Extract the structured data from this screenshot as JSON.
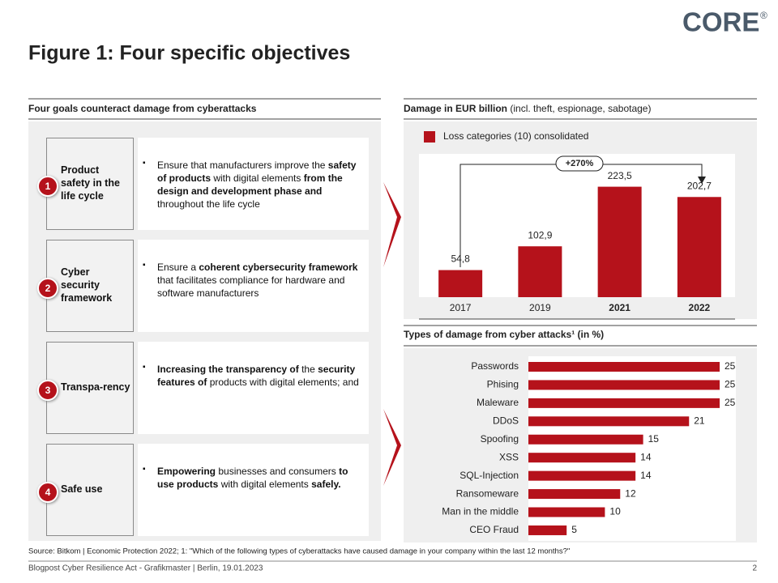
{
  "header": {
    "title": "Figure 1: Four specific objectives",
    "logo": "CORE",
    "logo_mark": "®"
  },
  "left": {
    "heading": "Four goals counteract damage from cyberattacks",
    "goals": [
      {
        "number": "1",
        "name": "Product safety in the life cycle",
        "description": [
          {
            "text": "Ensure that manufacturers improve the ",
            "bold": false
          },
          {
            "text": "safety of products",
            "bold": true
          },
          {
            "text": " with digital elements ",
            "bold": false
          },
          {
            "text": "from the design and development phase and",
            "bold": true
          },
          {
            "text": " throughout the life cycle",
            "bold": false
          }
        ]
      },
      {
        "number": "2",
        "name": "Cyber security framework",
        "description": [
          {
            "text": "Ensure a ",
            "bold": false
          },
          {
            "text": "coherent cybersecurity framework",
            "bold": true
          },
          {
            "text": " that facilitates compliance for hardware and software manufacturers",
            "bold": false
          }
        ]
      },
      {
        "number": "3",
        "name": "Transpa-rency",
        "description": [
          {
            "text": "Increasing the transparency of",
            "bold": true
          },
          {
            "text": " the ",
            "bold": false
          },
          {
            "text": "security features of",
            "bold": true
          },
          {
            "text": " products with digital elements; and",
            "bold": false
          }
        ]
      },
      {
        "number": "4",
        "name": "Safe use",
        "description": [
          {
            "text": "Empowering",
            "bold": true
          },
          {
            "text": " businesses and consumers ",
            "bold": false
          },
          {
            "text": "to use products",
            "bold": true
          },
          {
            "text": " with digital elements ",
            "bold": false
          },
          {
            "text": "safely.",
            "bold": true
          }
        ]
      }
    ]
  },
  "chart_data": [
    {
      "type": "bar",
      "title": "Damage in EUR billion",
      "subtitle": "(incl. theft, espionage, sabotage)",
      "categories": [
        "2017",
        "2019",
        "2021",
        "2022"
      ],
      "series": [
        {
          "name": "Loss categories (10) consolidated",
          "color": "#b5121b",
          "values": [
            54.8,
            102.9,
            223.5,
            202.7
          ],
          "value_labels": [
            "54,8",
            "102,9",
            "223,5",
            "202,7"
          ]
        }
      ],
      "ylim": [
        0,
        290
      ],
      "annotation": "+270%"
    },
    {
      "type": "barh",
      "title": "Types of damage from cyber attacks¹ (in %)",
      "categories": [
        "Passwords",
        "Phising",
        "Maleware",
        "DDoS",
        "Spoofing",
        "XSS",
        "SQL-Injection",
        "Ransomeware",
        "Man in the middle",
        "CEO Fraud"
      ],
      "values": [
        25,
        25,
        25,
        21,
        15,
        14,
        14,
        12,
        10,
        5
      ],
      "color": "#b5121b",
      "xlim": [
        0,
        25
      ]
    }
  ],
  "footer": {
    "source": "Source: Bitkom | Economic Protection 2022; 1: \"Which of the following types of cyberattacks have caused damage in your company within the last 12 months?\"",
    "text": "Blogpost Cyber Resilience Act - Grafikmaster | Berlin, 19.01.2023",
    "page": "2"
  }
}
